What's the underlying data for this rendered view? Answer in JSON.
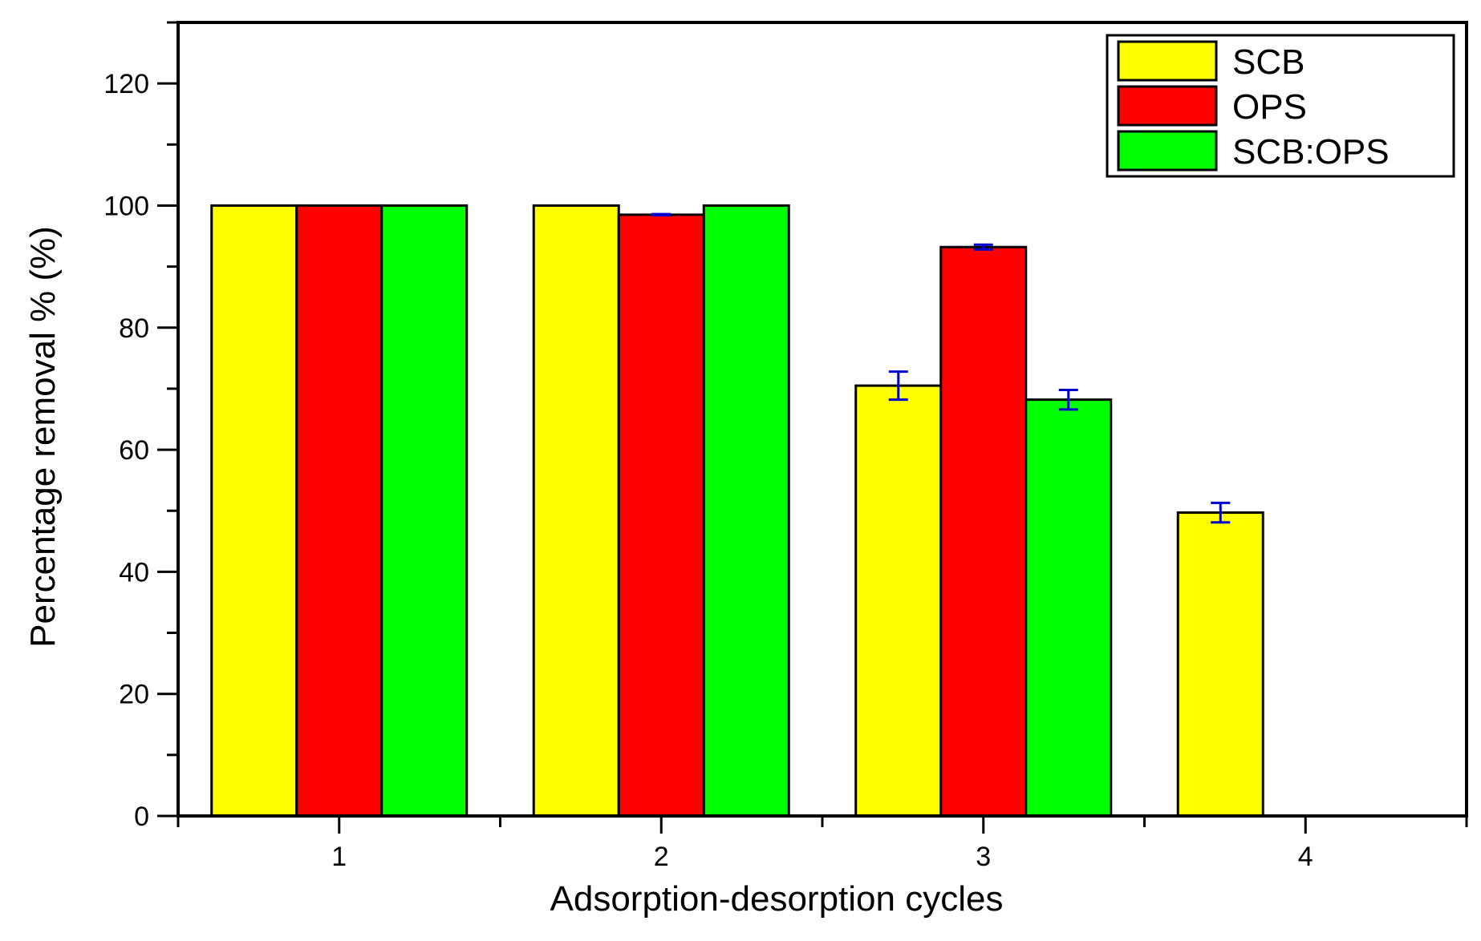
{
  "chart_data": {
    "type": "bar",
    "title": "",
    "xlabel": "Adsorption-desorption cycles",
    "ylabel": "Percentage removal % (%)",
    "categories": [
      "1",
      "2",
      "3",
      "4"
    ],
    "ylim": [
      0,
      130
    ],
    "yticks": [
      0,
      20,
      40,
      60,
      80,
      100,
      120
    ],
    "legend_position": "top-right",
    "series": [
      {
        "name": "SCB",
        "color": "#ffff00",
        "values": [
          100,
          100,
          70.5,
          49.7
        ],
        "errors": [
          0,
          0,
          2.3,
          1.6
        ]
      },
      {
        "name": "OPS",
        "color": "#ff0000",
        "values": [
          100,
          98.5,
          93.2,
          0
        ],
        "errors": [
          0,
          0.1,
          0.4,
          0
        ]
      },
      {
        "name": "SCB:OPS",
        "color": "#00ff00",
        "values": [
          100,
          100,
          68.2,
          0
        ],
        "errors": [
          0,
          0,
          1.6,
          0
        ]
      }
    ],
    "error_bar_color": "#0000cc"
  }
}
